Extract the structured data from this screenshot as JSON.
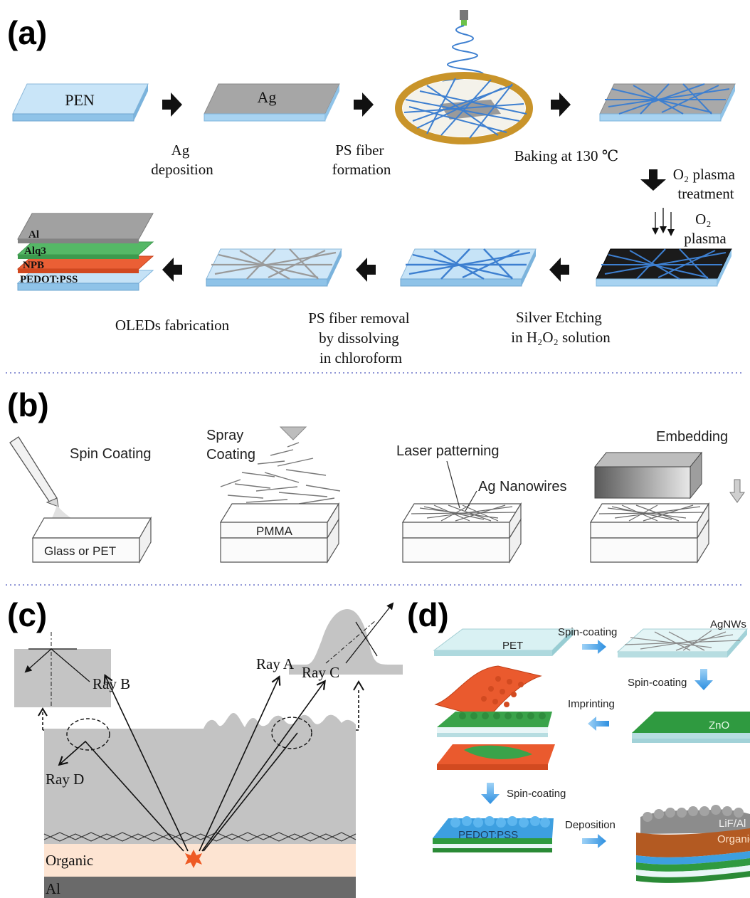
{
  "panels": {
    "a": {
      "label": "(a)",
      "layer_pen": "PEN",
      "layer_ag": "Ag",
      "step_ag": [
        "Ag",
        "deposition"
      ],
      "step_ps": [
        "PS fiber",
        "formation"
      ],
      "step_bake": "Baking at 130 ℃",
      "step_o2": [
        "O₂ plasma",
        "treatment"
      ],
      "o2_label": [
        "O₂",
        "plasma"
      ],
      "step_etch": [
        "Silver Etching",
        "in H₂O₂ solution"
      ],
      "step_remove": [
        "PS fiber removal",
        "by dissolving",
        "in chloroform"
      ],
      "step_oled": "OLEDs fabrication",
      "stack": [
        "Al",
        "Alq3",
        "NPB",
        "PEDOT:PSS"
      ]
    },
    "b": {
      "label": "(b)",
      "spin": "Spin Coating",
      "spray": [
        "Spray",
        "Coating"
      ],
      "glass": "Glass or PET",
      "pmma": "PMMA",
      "laser": "Laser patterning",
      "nanowires": "Ag Nanowires",
      "embedding": "Embedding"
    },
    "c": {
      "label": "(c)",
      "ray_a": "Ray A",
      "ray_b": "Ray B",
      "ray_c": "Ray C",
      "ray_d": "Ray D",
      "organic": "Organic",
      "al": "Al"
    },
    "d": {
      "label": "(d)",
      "pet": "PET",
      "agnws": "AgNWs",
      "spin1": "Spin-coating",
      "spin2": "Spin-coating",
      "imprint": "Imprinting",
      "zno": "ZnO",
      "spin3": "Spin-coating",
      "pedot": "PEDOT:PSS",
      "deposition": "Deposition",
      "lifal": "LiF/Al",
      "organic": "Organic"
    }
  },
  "colors": {
    "substrate_blue": "#bfe0f5",
    "silver": "#a4a4a4",
    "fiber_blue": "#3d7fd0",
    "orange": "#ea5a2e",
    "green": "#43a047",
    "zno_green": "#2f9a40",
    "peach": "#fde4d2",
    "gray_layer": "#c3c3c3",
    "dark_al": "#6a6a6a"
  }
}
